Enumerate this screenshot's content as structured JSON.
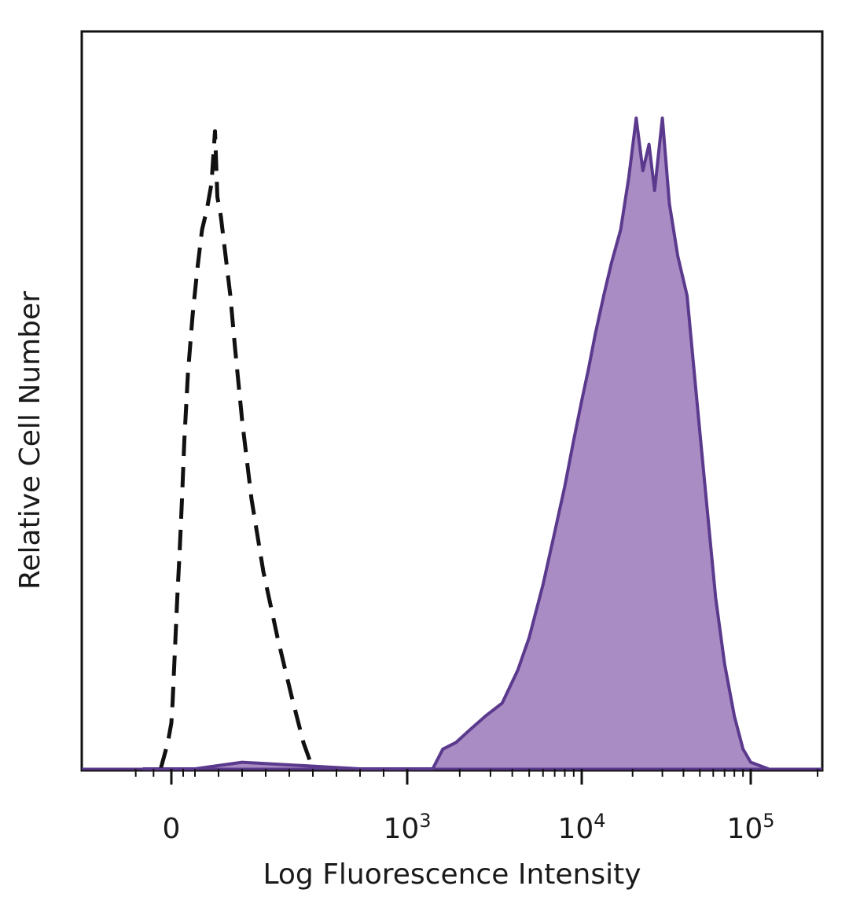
{
  "chart_data": {
    "type": "area",
    "title": "",
    "xlabel": "Log Fluorescence Intensity",
    "ylabel": "Relative Cell Number",
    "x_scale": "biexponential",
    "xlim": [
      -150,
      200000
    ],
    "ylim": [
      0,
      1.05
    ],
    "grid": false,
    "legend": "none",
    "x_tick_labels": [
      {
        "value": 0,
        "base": "0",
        "exp": ""
      },
      {
        "value": 1000,
        "base": "10",
        "exp": "3"
      },
      {
        "value": 10000,
        "base": "10",
        "exp": "4"
      },
      {
        "value": 100000,
        "base": "10",
        "exp": "5"
      }
    ],
    "series": [
      {
        "style": "dashed",
        "color": "#111111",
        "fill": "none",
        "points": [
          [
            -30,
            0.0
          ],
          [
            -10,
            0.04
          ],
          [
            0,
            0.07
          ],
          [
            5,
            0.1
          ],
          [
            15,
            0.18
          ],
          [
            25,
            0.26
          ],
          [
            35,
            0.33
          ],
          [
            45,
            0.41
          ],
          [
            55,
            0.5
          ],
          [
            70,
            0.6
          ],
          [
            90,
            0.69
          ],
          [
            110,
            0.76
          ],
          [
            130,
            0.82
          ],
          [
            150,
            0.85
          ],
          [
            170,
            0.89
          ],
          [
            185,
            0.97
          ],
          [
            195,
            0.87
          ],
          [
            210,
            0.84
          ],
          [
            230,
            0.78
          ],
          [
            250,
            0.72
          ],
          [
            270,
            0.64
          ],
          [
            300,
            0.53
          ],
          [
            340,
            0.41
          ],
          [
            390,
            0.3
          ],
          [
            450,
            0.2
          ],
          [
            510,
            0.11
          ],
          [
            560,
            0.04
          ],
          [
            600,
            0.0
          ]
        ]
      },
      {
        "style": "solid",
        "color": "#5b3a8e",
        "fill": "#a98cc4",
        "points": [
          [
            -80,
            0.0
          ],
          [
            100,
            0.0
          ],
          [
            300,
            0.01
          ],
          [
            800,
            0.0
          ],
          [
            1400,
            0.0
          ],
          [
            1600,
            0.03
          ],
          [
            1900,
            0.04
          ],
          [
            2300,
            0.06
          ],
          [
            2800,
            0.08
          ],
          [
            3500,
            0.1
          ],
          [
            4300,
            0.15
          ],
          [
            5000,
            0.2
          ],
          [
            6000,
            0.28
          ],
          [
            7000,
            0.36
          ],
          [
            8000,
            0.43
          ],
          [
            9000,
            0.5
          ],
          [
            10000,
            0.56
          ],
          [
            11000,
            0.61
          ],
          [
            12000,
            0.66
          ],
          [
            13500,
            0.72
          ],
          [
            15000,
            0.77
          ],
          [
            17000,
            0.82
          ],
          [
            19000,
            0.9
          ],
          [
            21000,
            0.99
          ],
          [
            23000,
            0.91
          ],
          [
            25000,
            0.95
          ],
          [
            27000,
            0.88
          ],
          [
            30000,
            0.99
          ],
          [
            33000,
            0.86
          ],
          [
            37000,
            0.78
          ],
          [
            42000,
            0.72
          ],
          [
            48000,
            0.56
          ],
          [
            55000,
            0.4
          ],
          [
            62000,
            0.26
          ],
          [
            70000,
            0.16
          ],
          [
            80000,
            0.08
          ],
          [
            90000,
            0.03
          ],
          [
            100000,
            0.01
          ],
          [
            120000,
            0.0
          ]
        ]
      }
    ]
  }
}
